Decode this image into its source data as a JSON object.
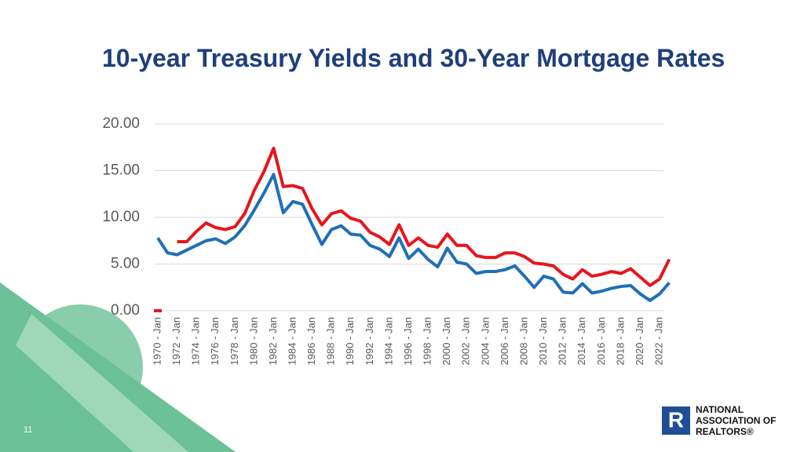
{
  "chart_data": {
    "type": "line",
    "title": "10-year Treasury Yields and 30-Year Mortgage Rates",
    "categories": [
      "1970 - Jan",
      null,
      "1972 - Jan",
      null,
      "1974 - Jan",
      null,
      "1976 - Jan",
      null,
      "1978 - Jan",
      null,
      "1980 - Jan",
      null,
      "1982 - Jan",
      null,
      "1984 - Jan",
      null,
      "1986 - Jan",
      null,
      "1988 - Jan",
      null,
      "1990 - Jan",
      null,
      "1992 - Jan",
      null,
      "1994 - Jan",
      null,
      "1996 - Jan",
      null,
      "1998 - Jan",
      null,
      "2000 - Jan",
      null,
      "2002 - Jan",
      null,
      "2004 - Jan",
      null,
      "2006 - Jan",
      null,
      "2008 - Jan",
      null,
      "2010 - Jan",
      null,
      "2012 - Jan",
      null,
      "2014 - Jan",
      null,
      "2016 - Jan",
      null,
      "2018 - Jan",
      null,
      "2020 - Jan",
      null,
      "2022 - Jan",
      null
    ],
    "series": [
      {
        "color": "#e8141c",
        "values": [
          0,
          null,
          7.4,
          7.4,
          8.5,
          9.4,
          8.9,
          8.7,
          9.0,
          10.4,
          12.9,
          14.9,
          17.4,
          13.3,
          13.4,
          13.1,
          10.9,
          9.2,
          10.4,
          10.7,
          9.9,
          9.6,
          8.4,
          7.9,
          7.1,
          9.2,
          7.0,
          7.8,
          7.0,
          6.8,
          8.2,
          7.0,
          7.0,
          5.9,
          5.7,
          5.7,
          6.2,
          6.2,
          5.8,
          5.1,
          5.0,
          4.8,
          3.9,
          3.4,
          4.4,
          3.7,
          3.9,
          4.2,
          4.0,
          4.5,
          3.6,
          2.7,
          3.4,
          5.5
        ]
      },
      {
        "color": "#1f6fb8",
        "values": [
          7.8,
          6.2,
          6.0,
          6.5,
          7.0,
          7.5,
          7.7,
          7.2,
          7.9,
          9.1,
          10.8,
          12.6,
          14.6,
          10.5,
          11.7,
          11.4,
          9.2,
          7.1,
          8.7,
          9.1,
          8.2,
          8.1,
          7.0,
          6.6,
          5.8,
          7.8,
          5.6,
          6.6,
          5.5,
          4.7,
          6.7,
          5.2,
          5.0,
          4.0,
          4.2,
          4.2,
          4.4,
          4.8,
          3.7,
          2.5,
          3.7,
          3.4,
          2.0,
          1.9,
          2.9,
          1.9,
          2.1,
          2.4,
          2.6,
          2.7,
          1.8,
          1.1,
          1.8,
          3.0
        ]
      }
    ],
    "ylim": [
      0,
      20
    ],
    "yticks": [
      {
        "value": 0,
        "label": "0.00"
      },
      {
        "value": 5,
        "label": "5.00"
      },
      {
        "value": 10,
        "label": "10.00"
      },
      {
        "value": 15,
        "label": "15.00"
      },
      {
        "value": 20,
        "label": "20.00"
      }
    ],
    "grid": true
  },
  "slide": {
    "page_number": "11",
    "logo": [
      "NATIONAL",
      "ASSOCIATION OF",
      "REALTORS®"
    ]
  }
}
